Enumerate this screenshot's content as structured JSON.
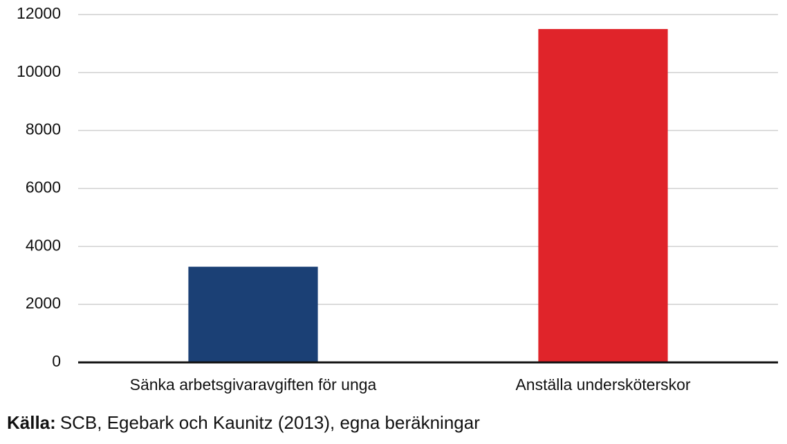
{
  "chart_data": {
    "type": "bar",
    "categories": [
      "Sänka arbetsgivaravgiften för unga",
      "Anställa undersköterskor"
    ],
    "values": [
      3300,
      11500
    ],
    "colors": [
      "#1b4075",
      "#e0242a"
    ],
    "ylim": [
      0,
      12000
    ],
    "yticks": [
      0,
      2000,
      4000,
      6000,
      8000,
      10000,
      12000
    ],
    "grid": true,
    "source_label": "Källa:",
    "source": "SCB, Egebark och Kaunitz (2013), egna beräkningar"
  }
}
